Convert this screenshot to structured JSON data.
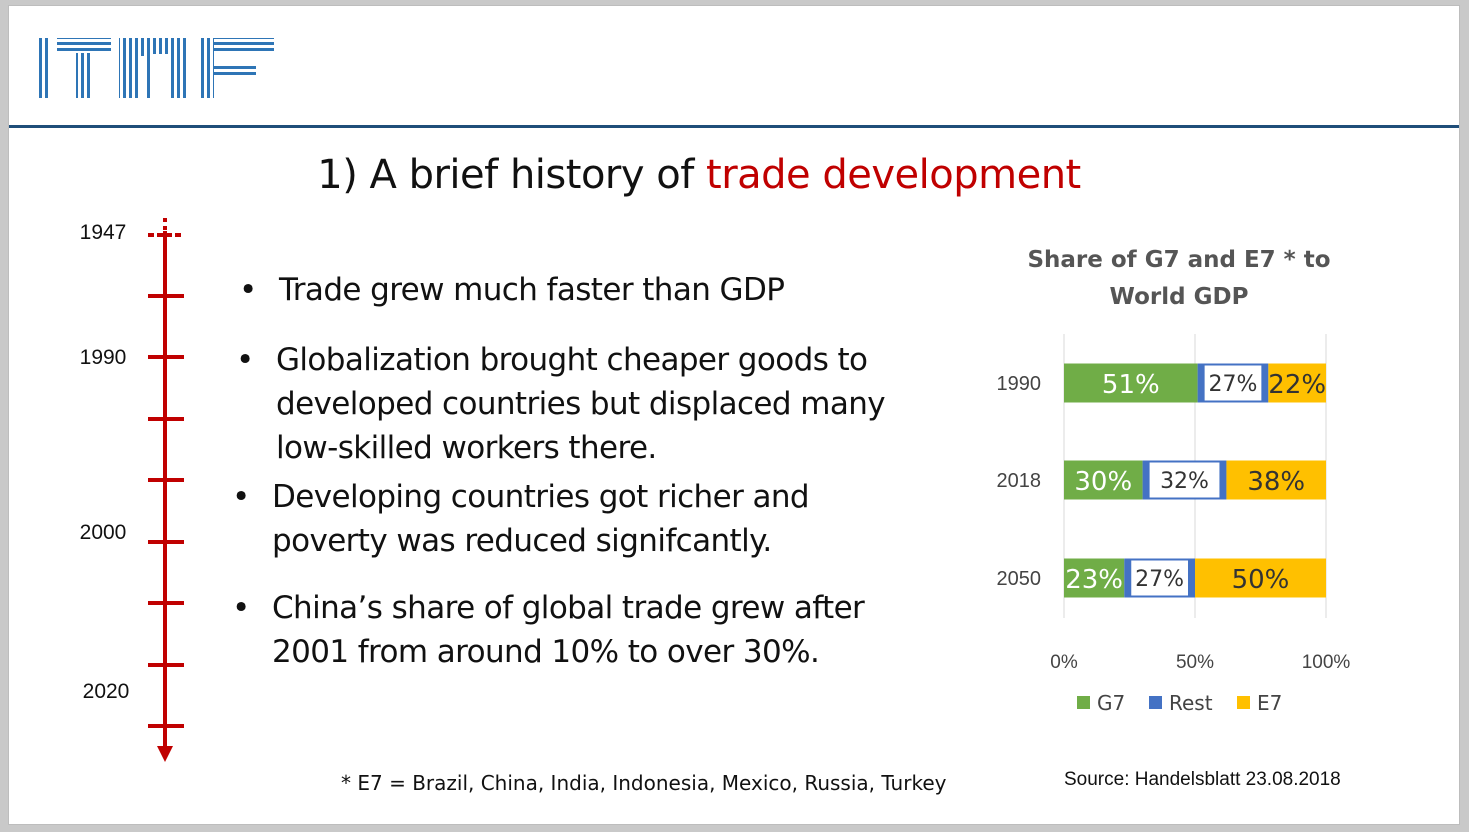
{
  "logo": {
    "text": "ITMF"
  },
  "title": {
    "prefix": "1) A brief history of ",
    "accent": "trade development"
  },
  "colors": {
    "accent_red": "#c00000",
    "header_rule": "#1f4e79",
    "logo_blue": "#2e75b6",
    "g7": "#70ad47",
    "rest": "#4472c4",
    "e7": "#ffc000"
  },
  "timeline": {
    "years": [
      "1947",
      "1990",
      "2000",
      "2020"
    ]
  },
  "bullets": [
    {
      "text": "Trade grew much faster than GDP"
    },
    {
      "line1": "Globalization brought cheaper goods to",
      "line2": "developed countries but displaced many",
      "line3": "low-skilled workers there."
    },
    {
      "line1": "Developing countries got richer and",
      "line2": "poverty was reduced signifcantly."
    },
    {
      "line1": "China’s share of global trade grew after",
      "line2": "2001 from around 10% to over 30%."
    }
  ],
  "chart_data": {
    "type": "bar",
    "orientation": "horizontal-stacked-100",
    "title": "Share of G7 and E7 * to World GDP",
    "title_line1": "Share of G7 and E7 * to",
    "title_line2": "World GDP",
    "categories": [
      "1990",
      "2018",
      "2050"
    ],
    "series": [
      {
        "name": "G7",
        "values": [
          51,
          30,
          23
        ],
        "color": "#70ad47"
      },
      {
        "name": "Rest",
        "values": [
          27,
          32,
          27
        ],
        "color": "#4472c4"
      },
      {
        "name": "E7",
        "values": [
          22,
          38,
          50
        ],
        "color": "#ffc000"
      }
    ],
    "xlim": [
      0,
      100
    ],
    "x_ticks": [
      "0%",
      "50%",
      "100%"
    ],
    "grid": true,
    "legend": "bottom"
  },
  "footnote": "* E7 = Brazil, China, India, Indonesia, Mexico, Russia, Turkey",
  "source": "Source: Handelsblatt 23.08.2018"
}
